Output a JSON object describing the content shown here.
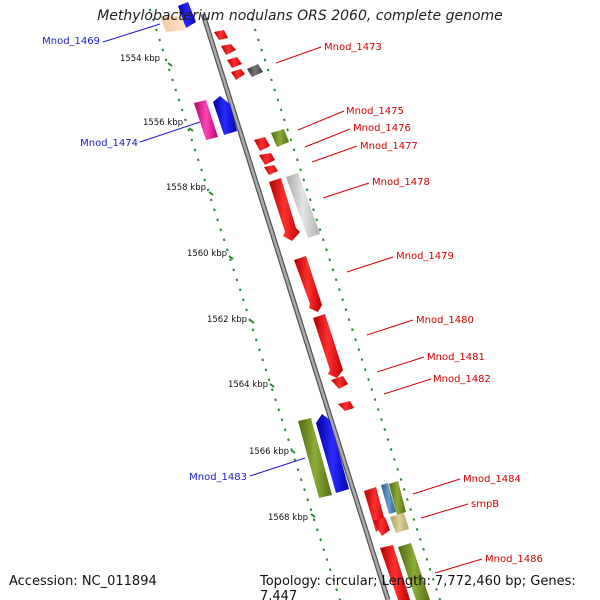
{
  "title": "Methylobacterium nodulans ORS 2060, complete genome",
  "accession": "Accession: NC_011894",
  "topology": "Topology: circular; Length: 7,772,460 bp; Genes: 7,447",
  "kbp_ticks": [
    "1554 kbp",
    "1556 kbp",
    "1558 kbp",
    "1560 kbp",
    "1562 kbp",
    "1564 kbp",
    "1566 kbp",
    "1568 kbp"
  ],
  "gene_labels": {
    "left": [
      "Mnod_1469",
      "Mnod_1474",
      "Mnod_1483"
    ],
    "right": [
      "Mnod_1473",
      "Mnod_1475",
      "Mnod_1476",
      "Mnod_1477",
      "Mnod_1478",
      "Mnod_1479",
      "Mnod_1480",
      "Mnod_1481",
      "Mnod_1482",
      "Mnod_1484",
      "smpB",
      "Mnod_1486"
    ]
  },
  "colors": {
    "left_label": "#1a1acc",
    "right_label": "#d60000",
    "backbone": "#888888",
    "tick": "#2a8a2a",
    "gene_red": "#ee1111",
    "gene_blue": "#1111ee",
    "gene_olive": "#6f8e23",
    "gene_magenta": "#ee1199",
    "gene_gray": "#cccccc"
  }
}
